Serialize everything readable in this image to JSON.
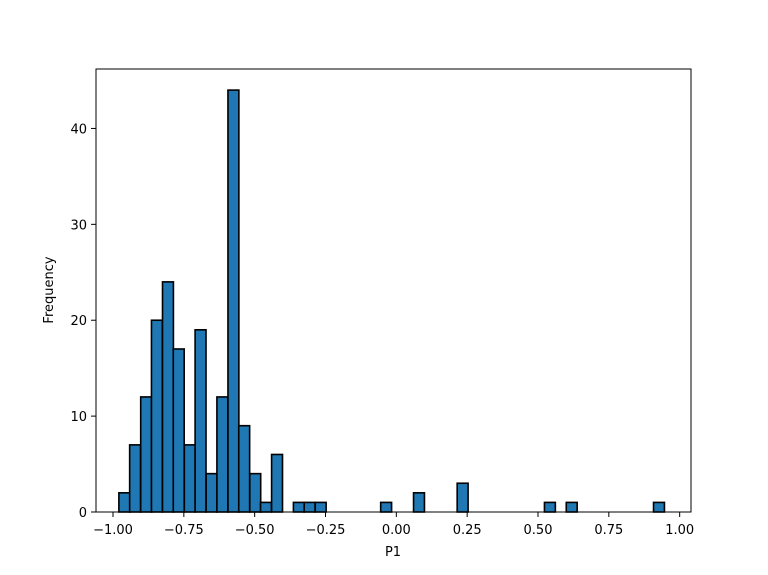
{
  "chart_data": {
    "type": "bar",
    "xlabel": "P1",
    "ylabel": "Frequency",
    "xlim": [
      -1.06,
      1.04
    ],
    "ylim": [
      0,
      46.2
    ],
    "bin_width": 0.0385,
    "bins": [
      {
        "x": -0.96,
        "count": 2
      },
      {
        "x": -0.922,
        "count": 7
      },
      {
        "x": -0.883,
        "count": 12
      },
      {
        "x": -0.845,
        "count": 20
      },
      {
        "x": -0.806,
        "count": 24
      },
      {
        "x": -0.768,
        "count": 17
      },
      {
        "x": -0.729,
        "count": 7
      },
      {
        "x": -0.691,
        "count": 19
      },
      {
        "x": -0.652,
        "count": 4
      },
      {
        "x": -0.614,
        "count": 12
      },
      {
        "x": -0.575,
        "count": 44
      },
      {
        "x": -0.537,
        "count": 9
      },
      {
        "x": -0.498,
        "count": 4
      },
      {
        "x": -0.46,
        "count": 1
      },
      {
        "x": -0.421,
        "count": 6
      },
      {
        "x": -0.344,
        "count": 1
      },
      {
        "x": -0.306,
        "count": 1
      },
      {
        "x": -0.267,
        "count": 1
      },
      {
        "x": -0.036,
        "count": 1
      },
      {
        "x": 0.08,
        "count": 2
      },
      {
        "x": 0.234,
        "count": 3
      },
      {
        "x": 0.542,
        "count": 1
      },
      {
        "x": 0.619,
        "count": 1
      },
      {
        "x": 0.927,
        "count": 1
      }
    ],
    "xticks": [
      {
        "value": -1.0,
        "label": "−1.00"
      },
      {
        "value": -0.75,
        "label": "−0.75"
      },
      {
        "value": -0.5,
        "label": "−0.50"
      },
      {
        "value": -0.25,
        "label": "−0.25"
      },
      {
        "value": 0.0,
        "label": "0.00"
      },
      {
        "value": 0.25,
        "label": "0.25"
      },
      {
        "value": 0.5,
        "label": "0.50"
      },
      {
        "value": 0.75,
        "label": "0.75"
      },
      {
        "value": 1.0,
        "label": "1.00"
      }
    ],
    "yticks": [
      {
        "value": 0,
        "label": "0"
      },
      {
        "value": 10,
        "label": "10"
      },
      {
        "value": 20,
        "label": "20"
      },
      {
        "value": 30,
        "label": "30"
      },
      {
        "value": 40,
        "label": "40"
      }
    ],
    "colors": {
      "bar_fill": "#1f77b4",
      "bar_edge": "#000000"
    },
    "grid": false,
    "legend": "none"
  }
}
